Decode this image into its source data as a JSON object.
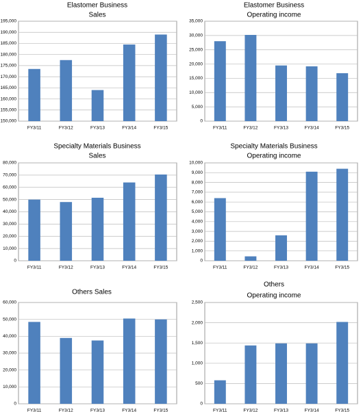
{
  "chart_data": [
    {
      "type": "bar",
      "title": [
        "Elastomer Business",
        "Sales"
      ],
      "categories": [
        "FY3/11",
        "FY3/12",
        "FY3/13",
        "FY3/14",
        "FY3/15"
      ],
      "values": [
        173500,
        177500,
        164000,
        184500,
        189000
      ],
      "color": "#4f81bd",
      "ylim": [
        150000,
        195000
      ],
      "yticks": [
        {
          "value": 150000,
          "label": "150,000"
        },
        {
          "value": 155000,
          "label": "155,000"
        },
        {
          "value": 160000,
          "label": "160,000"
        },
        {
          "value": 165000,
          "label": "165,000"
        },
        {
          "value": 170000,
          "label": "170,000"
        },
        {
          "value": 175000,
          "label": "175,000"
        },
        {
          "value": 180000,
          "label": "180,000"
        },
        {
          "value": 185000,
          "label": "185,000"
        },
        {
          "value": 190000,
          "label": "190,000"
        },
        {
          "value": 195000,
          "label": "195,000"
        }
      ],
      "grid": true
    },
    {
      "type": "bar",
      "title": [
        "Elastomer Business",
        "Operating income"
      ],
      "categories": [
        "FY3/11",
        "FY3/12",
        "FY3/13",
        "FY3/14",
        "FY3/15"
      ],
      "values": [
        28000,
        30200,
        19500,
        19200,
        16800
      ],
      "color": "#4f81bd",
      "ylim": [
        0,
        35000
      ],
      "yticks": [
        0,
        {
          "value": 5000,
          "label": "5,000"
        },
        {
          "value": 10000,
          "label": "10,000"
        },
        {
          "value": 15000,
          "label": "15,000"
        },
        {
          "value": 20000,
          "label": "20,000"
        },
        {
          "value": 25000,
          "label": "25,000"
        },
        {
          "value": 30000,
          "label": "30,000"
        },
        {
          "value": 35000,
          "label": "35,000"
        }
      ],
      "grid": true
    },
    {
      "type": "bar",
      "title": [
        "Specialty Materials Business",
        "Sales"
      ],
      "categories": [
        "FY3/11",
        "FY3/12",
        "FY3/13",
        "FY3/14",
        "FY3/15"
      ],
      "values": [
        50000,
        48000,
        51500,
        64000,
        70500
      ],
      "color": "#4f81bd",
      "ylim": [
        0,
        80000
      ],
      "yticks": [
        0,
        {
          "value": 10000,
          "label": "10,000"
        },
        {
          "value": 20000,
          "label": "20,000"
        },
        {
          "value": 30000,
          "label": "30,000"
        },
        {
          "value": 40000,
          "label": "40,000"
        },
        {
          "value": 50000,
          "label": "50,000"
        },
        {
          "value": 60000,
          "label": "60,000"
        },
        {
          "value": 70000,
          "label": "70,000"
        },
        {
          "value": 80000,
          "label": "80,000"
        }
      ],
      "grid": true
    },
    {
      "type": "bar",
      "title": [
        "Specialty Materials Business",
        "Operating income"
      ],
      "categories": [
        "FY3/11",
        "FY3/12",
        "FY3/13",
        "FY3/14",
        "FY3/15"
      ],
      "values": [
        6400,
        450,
        2600,
        9100,
        9400
      ],
      "color": "#4f81bd",
      "ylim": [
        0,
        10000
      ],
      "yticks": [
        0,
        {
          "value": 1000,
          "label": "1,000"
        },
        {
          "value": 2000,
          "label": "2,000"
        },
        {
          "value": 3000,
          "label": "3,000"
        },
        {
          "value": 4000,
          "label": "4,000"
        },
        {
          "value": 5000,
          "label": "5,000"
        },
        {
          "value": 6000,
          "label": "6,000"
        },
        {
          "value": 7000,
          "label": "7,000"
        },
        {
          "value": 8000,
          "label": "8,000"
        },
        {
          "value": 9000,
          "label": "9,000"
        },
        {
          "value": 10000,
          "label": "10,000"
        }
      ],
      "grid": true
    },
    {
      "type": "bar",
      "title": [
        "Others  Sales"
      ],
      "categories": [
        "FY3/11",
        "FY3/12",
        "FY3/13",
        "FY3/14",
        "FY3/15"
      ],
      "values": [
        48500,
        39000,
        37500,
        50500,
        50000
      ],
      "color": "#4f81bd",
      "ylim": [
        0,
        60000
      ],
      "yticks": [
        0,
        {
          "value": 10000,
          "label": "10,000"
        },
        {
          "value": 20000,
          "label": "20,000"
        },
        {
          "value": 30000,
          "label": "30,000"
        },
        {
          "value": 40000,
          "label": "40,000"
        },
        {
          "value": 50000,
          "label": "50,000"
        },
        {
          "value": 60000,
          "label": "60,000"
        }
      ],
      "grid": true
    },
    {
      "type": "bar",
      "title": [
        "Others",
        "Operating income"
      ],
      "categories": [
        "FY3/11",
        "FY3/12",
        "FY3/13",
        "FY3/14",
        "FY3/15"
      ],
      "values": [
        580,
        1440,
        1490,
        1490,
        2020
      ],
      "color": "#4f81bd",
      "ylim": [
        0,
        2500
      ],
      "yticks": [
        0,
        {
          "value": 500,
          "label": "500"
        },
        {
          "value": 1000,
          "label": "1,000"
        },
        {
          "value": 1500,
          "label": "1,500"
        },
        {
          "value": 2000,
          "label": "2,000"
        },
        {
          "value": 2500,
          "label": "2,500"
        }
      ],
      "grid": true
    }
  ]
}
